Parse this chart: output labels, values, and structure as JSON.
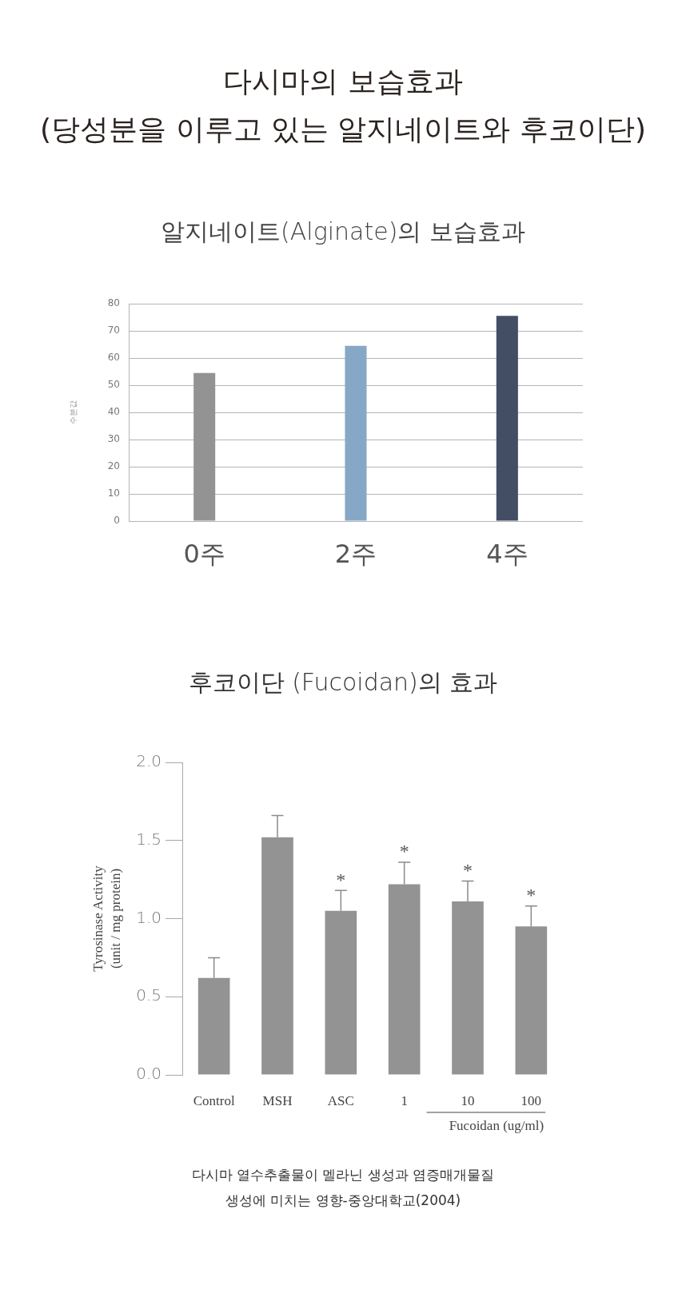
{
  "chart_data": [
    {
      "type": "bar",
      "title": "다시마의 보습효과\n(당성분을 이루고 있는 알지네이트와 후코이단)",
      "subtitle": "알지네이트(Alginate)의 보습효과",
      "ylabel": "수분값",
      "categories": [
        "0주",
        "2주",
        "4주"
      ],
      "values": [
        54.5,
        64.5,
        75.5
      ],
      "colors": [
        "#939393",
        "#86a8c6",
        "#434e65"
      ],
      "ylim": [
        0,
        80
      ],
      "yticks": [
        0,
        10,
        20,
        30,
        40,
        50,
        60,
        70,
        80
      ],
      "grid": "y"
    },
    {
      "type": "bar",
      "title": "후코이단 (Fucoidan)의 효과",
      "xlabel": "Fucoidan (ug/ml)",
      "ylabel": "Tyrosinase Activity\n(unit / mg protein)",
      "categories": [
        "Control",
        "MSH",
        "ASC",
        "1",
        "10",
        "100"
      ],
      "values": [
        0.62,
        1.52,
        1.05,
        1.22,
        1.11,
        0.95
      ],
      "errors": [
        [
          0.62,
          0.75
        ],
        [
          1.52,
          1.66
        ],
        [
          1.05,
          1.18
        ],
        [
          1.22,
          1.36
        ],
        [
          1.11,
          1.24
        ],
        [
          0.95,
          1.08
        ]
      ],
      "color": "#939393",
      "ylim": [
        0,
        2
      ],
      "yticks": [
        {
          "value": 0,
          "label": "0.0"
        },
        0.5,
        {
          "value": 1,
          "label": "1.0"
        },
        1.5,
        {
          "value": 2,
          "label": "2.0"
        }
      ],
      "grid": false,
      "annotations": [
        {
          "text": "*",
          "x": "ASC",
          "y": 1.18
        },
        {
          "text": "*",
          "x": "1",
          "y": 1.36
        },
        {
          "text": "*",
          "x": "10",
          "y": 1.24
        },
        {
          "text": "*",
          "x": "100",
          "y": 1.08
        },
        "다시마 열수추출물이 멜라닌 생성과 염증매개물질\n생성에 미치는 영향-중앙대학교(2004)"
      ]
    }
  ]
}
